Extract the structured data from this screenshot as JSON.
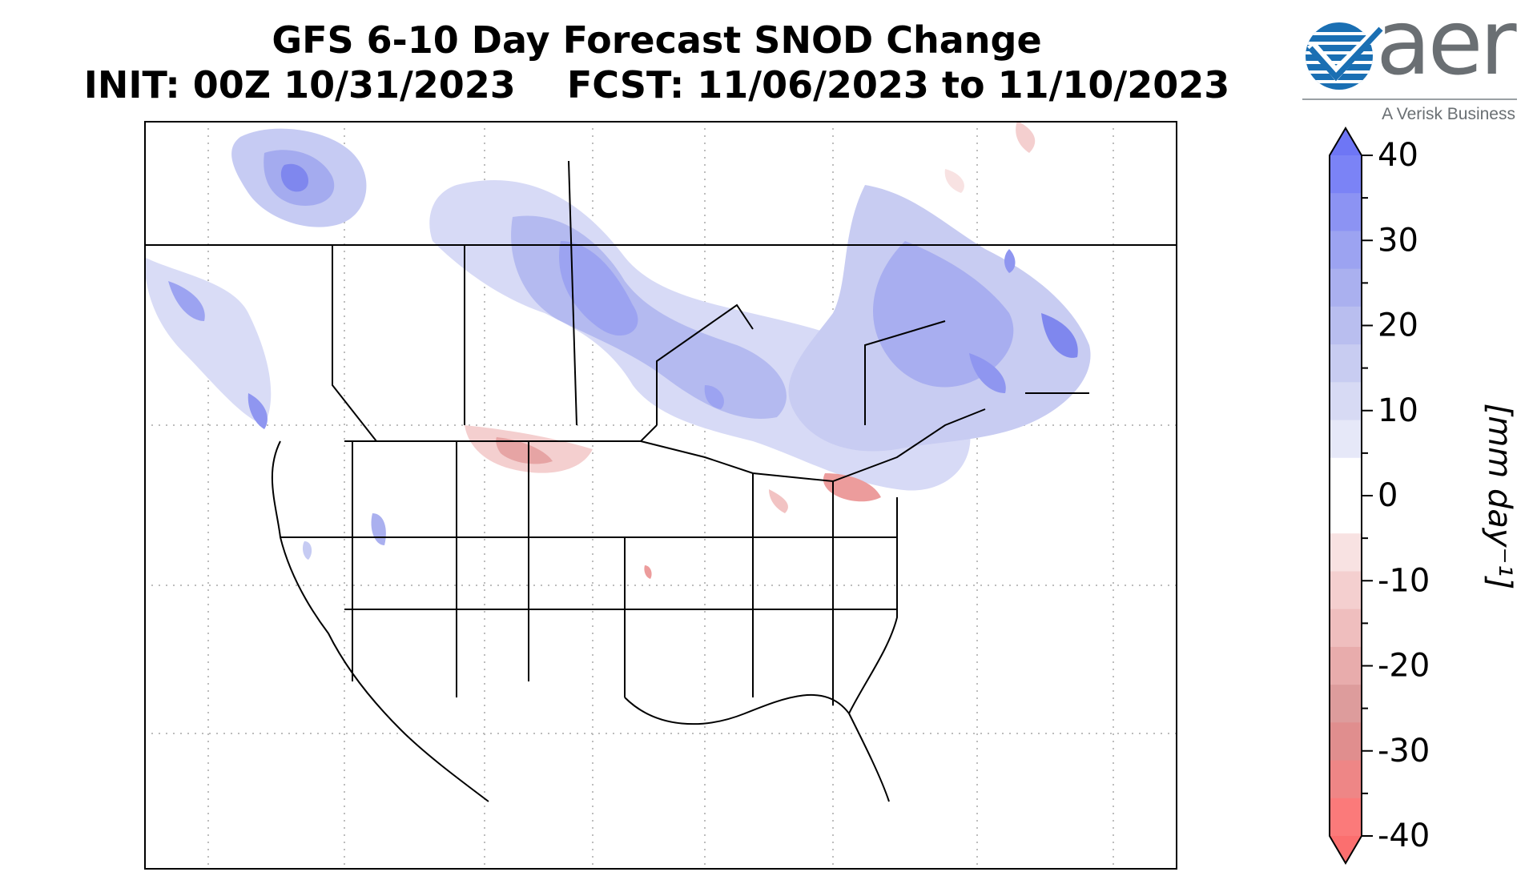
{
  "title": {
    "line1": "GFS 6-10 Day Forecast SNOD Change",
    "line2": "INIT: 00Z 10/31/2023    FCST: 11/06/2023 to 11/10/2023"
  },
  "logo": {
    "wordmark": "aer",
    "tagline": "A Verisk Business",
    "brand_color": "#1a6fb3"
  },
  "colorbar": {
    "label": "[mm day⁻¹]",
    "ticks": [
      "40",
      "30",
      "20",
      "10",
      "0",
      "-10",
      "-20",
      "-30",
      "-40"
    ],
    "min": -40,
    "max": 40,
    "step": 5,
    "extend": "both",
    "colors_high_to_low": [
      "#7b83f6",
      "#8c93f3",
      "#9ca3f1",
      "#aab0ef",
      "#b9beef",
      "#c8ccf1",
      "#d7daf4",
      "#e6e8f8",
      "#ffffff",
      "#ffffff",
      "#f8e2e2",
      "#f4cfcf",
      "#efbebe",
      "#e8acac",
      "#dd9c9c",
      "#e08e8e",
      "#ee8686",
      "#fb7a7a"
    ]
  },
  "map": {
    "projection": "Lambert Conformal, North America",
    "gridlines": "dotted",
    "colors": {
      "snow_gain": "#8f96f0",
      "snow_loss": "#ec9c9c",
      "coast": "#000000",
      "border": "#000000"
    }
  }
}
